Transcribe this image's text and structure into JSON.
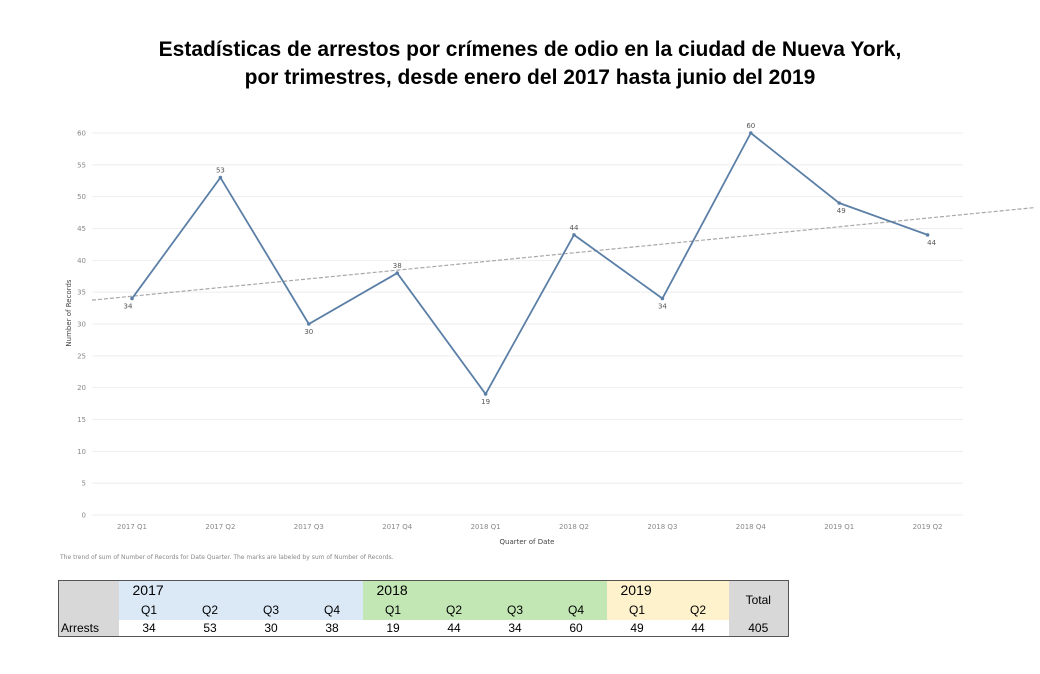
{
  "title_line1": "Estadísticas de arrestos por crímenes de odio en la ciudad de Nueva York,",
  "title_line2": "por trimestres, desde enero del 2017 hasta junio del 2019",
  "chart_data": {
    "type": "line",
    "xlabel": "Quarter of Date",
    "ylabel": "Number of Records",
    "ylim": [
      0,
      60
    ],
    "yticks": [
      0,
      5,
      10,
      15,
      20,
      25,
      30,
      35,
      40,
      45,
      50,
      55,
      60
    ],
    "categories": [
      "2017 Q1",
      "2017 Q2",
      "2017 Q3",
      "2017 Q4",
      "2018 Q1",
      "2018 Q2",
      "2018 Q3",
      "2018 Q4",
      "2019 Q1",
      "2019 Q2"
    ],
    "values": [
      34,
      53,
      30,
      38,
      19,
      44,
      34,
      60,
      49,
      44
    ],
    "trend_line": true,
    "line_color": "#5b7fa6",
    "trend_color": "#a8a8a8",
    "grid": "horizontal"
  },
  "note": "The trend of sum of Number of Records for Date Quarter.  The marks are labeled by sum of Number of Records.",
  "table": {
    "years": [
      {
        "label": "2017",
        "quarters": [
          "Q1",
          "Q2",
          "Q3",
          "Q4"
        ],
        "values": [
          "34",
          "53",
          "30",
          "38"
        ]
      },
      {
        "label": "2018",
        "quarters": [
          "Q1",
          "Q2",
          "Q3",
          "Q4"
        ],
        "values": [
          "19",
          "44",
          "34",
          "60"
        ]
      },
      {
        "label": "2019",
        "quarters": [
          "Q1",
          "Q2"
        ],
        "values": [
          "49",
          "44"
        ]
      }
    ],
    "total_label": "Total",
    "row_label": "Arrests",
    "total_value": "405"
  }
}
